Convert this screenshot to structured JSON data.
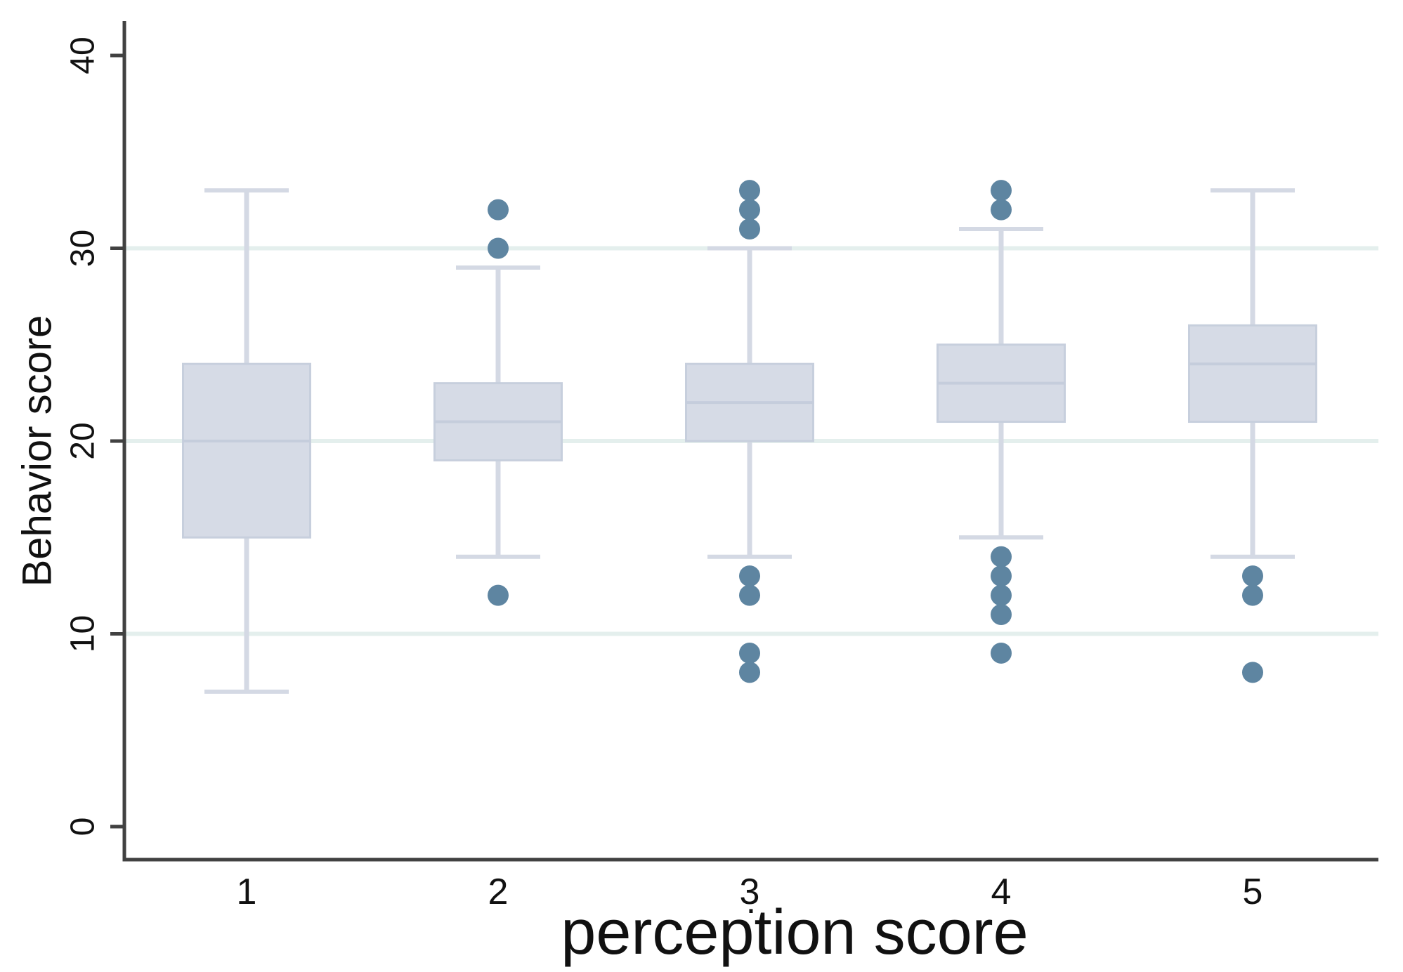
{
  "figure": {
    "background": "#ffffff"
  },
  "chart_data": {
    "type": "box",
    "xlabel": "perception score",
    "ylabel": "Behavior score",
    "x_categories": [
      "1",
      "2",
      "3",
      "4",
      "5"
    ],
    "y_ticks": [
      "0",
      "10",
      "20",
      "30",
      "40"
    ],
    "y_tick_values": [
      0,
      10,
      20,
      30,
      40
    ],
    "y_gridline_values": [
      10,
      20,
      30
    ],
    "ylim": [
      0,
      40
    ],
    "grid": "horizontal-only",
    "legend_position": "none",
    "stray_mark": ".",
    "boxes": [
      {
        "category": "1",
        "whisker_low": 7,
        "q1": 15,
        "median": 20,
        "q3": 24,
        "whisker_high": 33,
        "outliers_high": [],
        "outliers_low": []
      },
      {
        "category": "2",
        "whisker_low": 14,
        "q1": 19,
        "median": 21,
        "q3": 23,
        "whisker_high": 29,
        "outliers_high": [
          30,
          32
        ],
        "outliers_low": [
          12
        ]
      },
      {
        "category": "3",
        "whisker_low": 14,
        "q1": 20,
        "median": 22,
        "q3": 24,
        "whisker_high": 30,
        "outliers_high": [
          31,
          32,
          33
        ],
        "outliers_low": [
          13,
          12,
          9,
          8
        ]
      },
      {
        "category": "4",
        "whisker_low": 15,
        "q1": 21,
        "median": 23,
        "q3": 25,
        "whisker_high": 31,
        "outliers_high": [
          32,
          33
        ],
        "outliers_low": [
          14,
          13,
          12,
          11,
          9
        ]
      },
      {
        "category": "5",
        "whisker_low": 14,
        "q1": 21,
        "median": 24,
        "q3": 26,
        "whisker_high": 33,
        "outliers_high": [],
        "outliers_low": [
          13,
          12,
          8
        ]
      }
    ],
    "colors": {
      "box_fill": "#d6dbe6",
      "box_border": "#c7cfdd",
      "median_line": "#c5cddc",
      "whisker": "#d4d9e4",
      "outlier_dot": "#5e85a1",
      "gridline": "#e4efed",
      "axis": "#414141",
      "text": "#111111"
    }
  }
}
